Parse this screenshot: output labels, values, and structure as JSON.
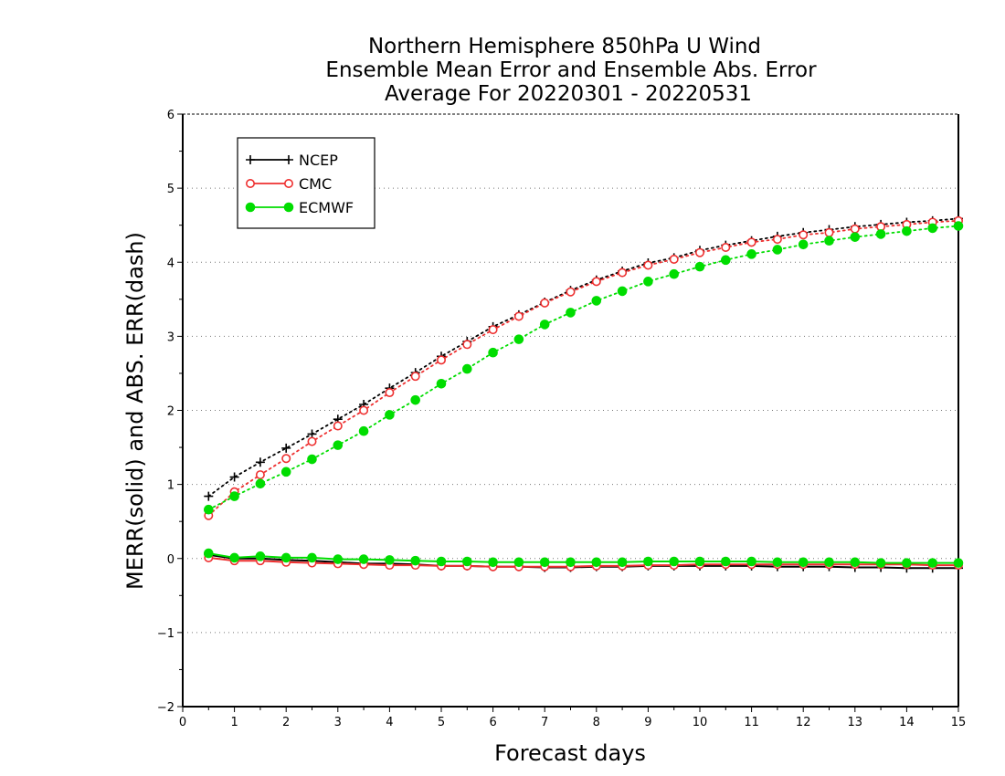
{
  "chart_data": {
    "type": "line",
    "title_lines": [
      "Northern Hemisphere 850hPa U Wind",
      "Ensemble Mean Error and Ensemble Abs. Error",
      "Average For 20220301 - 20220531"
    ],
    "xlabel": "Forecast days",
    "ylabel": "MERR(solid) and ABS. ERR(dash)",
    "xlim": [
      0,
      15
    ],
    "ylim": [
      -2,
      6
    ],
    "x_ticks": [
      "0",
      "1",
      "2",
      "3",
      "4",
      "5",
      "6",
      "7",
      "8",
      "9",
      "10",
      "11",
      "12",
      "13",
      "14",
      "15"
    ],
    "y_ticks": [
      "−2",
      "−1",
      "0",
      "1",
      "2",
      "3",
      "4",
      "5",
      "6"
    ],
    "grid": "horizontal dotted",
    "legend_position": "top-left",
    "x": [
      0.5,
      1,
      1.5,
      2,
      2.5,
      3,
      3.5,
      4,
      4.5,
      5,
      5.5,
      6,
      6.5,
      7,
      7.5,
      8,
      8.5,
      9,
      9.5,
      10,
      10.5,
      11,
      11.5,
      12,
      12.5,
      13,
      13.5,
      14,
      14.5,
      15
    ],
    "series": [
      {
        "name": "NCEP",
        "color": "#000000",
        "marker": "plus",
        "abs_err": [
          0.84,
          1.1,
          1.3,
          1.49,
          1.68,
          1.88,
          2.08,
          2.3,
          2.51,
          2.73,
          2.93,
          3.13,
          3.29,
          3.46,
          3.62,
          3.76,
          3.88,
          3.99,
          4.06,
          4.16,
          4.23,
          4.29,
          4.35,
          4.4,
          4.44,
          4.48,
          4.51,
          4.54,
          4.56,
          4.59
        ],
        "mean_err": [
          0.05,
          0.0,
          0.0,
          -0.02,
          -0.03,
          -0.05,
          -0.07,
          -0.07,
          -0.08,
          -0.1,
          -0.1,
          -0.11,
          -0.11,
          -0.12,
          -0.12,
          -0.11,
          -0.11,
          -0.1,
          -0.1,
          -0.1,
          -0.1,
          -0.1,
          -0.11,
          -0.11,
          -0.11,
          -0.12,
          -0.12,
          -0.13,
          -0.13,
          -0.13
        ]
      },
      {
        "name": "CMC",
        "color": "#ee3030",
        "marker": "open-circle",
        "abs_err": [
          0.58,
          0.9,
          1.13,
          1.35,
          1.58,
          1.79,
          2.0,
          2.24,
          2.46,
          2.68,
          2.89,
          3.09,
          3.27,
          3.45,
          3.6,
          3.74,
          3.86,
          3.96,
          4.04,
          4.13,
          4.2,
          4.27,
          4.31,
          4.37,
          4.4,
          4.45,
          4.48,
          4.51,
          4.54,
          4.56
        ],
        "mean_err": [
          0.01,
          -0.03,
          -0.03,
          -0.05,
          -0.06,
          -0.07,
          -0.08,
          -0.09,
          -0.09,
          -0.1,
          -0.1,
          -0.11,
          -0.11,
          -0.11,
          -0.11,
          -0.1,
          -0.1,
          -0.09,
          -0.09,
          -0.08,
          -0.08,
          -0.08,
          -0.08,
          -0.08,
          -0.08,
          -0.08,
          -0.08,
          -0.08,
          -0.09,
          -0.09
        ]
      },
      {
        "name": "ECMWF",
        "color": "#00dd00",
        "marker": "filled-circle",
        "abs_err": [
          0.66,
          0.84,
          1.01,
          1.17,
          1.34,
          1.53,
          1.72,
          1.94,
          2.14,
          2.36,
          2.56,
          2.78,
          2.96,
          3.16,
          3.32,
          3.48,
          3.61,
          3.74,
          3.84,
          3.94,
          4.03,
          4.11,
          4.17,
          4.24,
          4.29,
          4.34,
          4.38,
          4.42,
          4.46,
          4.49
        ],
        "mean_err": [
          0.07,
          0.01,
          0.03,
          0.01,
          0.01,
          -0.01,
          -0.01,
          -0.02,
          -0.03,
          -0.04,
          -0.04,
          -0.05,
          -0.05,
          -0.05,
          -0.05,
          -0.05,
          -0.05,
          -0.04,
          -0.04,
          -0.04,
          -0.04,
          -0.04,
          -0.05,
          -0.05,
          -0.05,
          -0.05,
          -0.06,
          -0.06,
          -0.06,
          -0.06
        ]
      }
    ]
  }
}
